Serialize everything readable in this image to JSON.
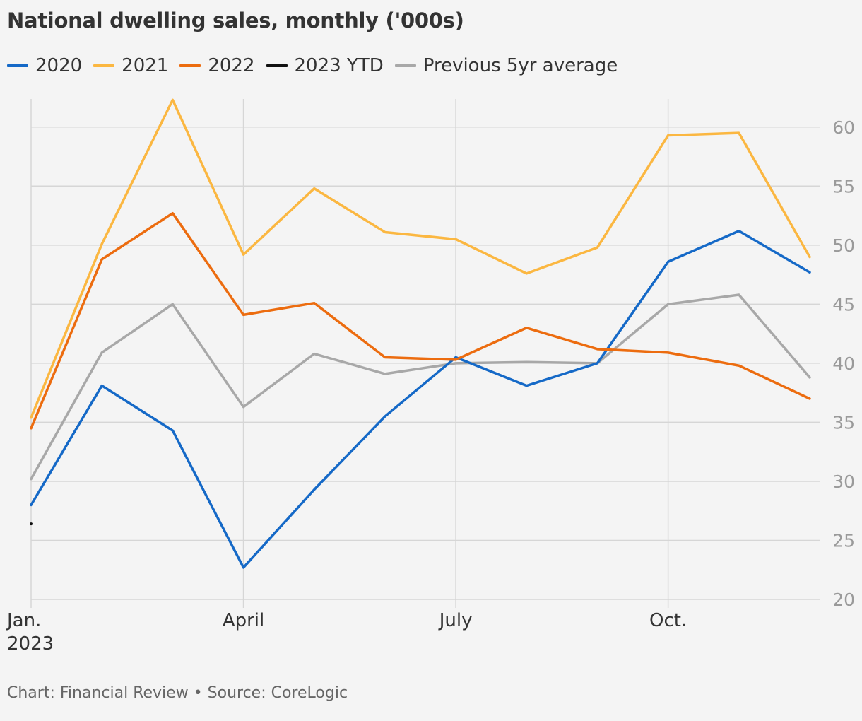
{
  "title": "National dwelling sales, monthly ('000s)",
  "footer": "Chart: Financial Review • Source: CoreLogic",
  "chart_data": {
    "type": "line",
    "x": [
      1,
      2,
      3,
      4,
      5,
      6,
      7,
      8,
      9,
      10,
      11,
      12
    ],
    "x_ticks": [
      {
        "x": 1,
        "label": "Jan.",
        "sublabel": "2023"
      },
      {
        "x": 4,
        "label": "April",
        "sublabel": ""
      },
      {
        "x": 7,
        "label": "July",
        "sublabel": ""
      },
      {
        "x": 10,
        "label": "Oct.",
        "sublabel": ""
      }
    ],
    "y_ticks": [
      20,
      25,
      30,
      35,
      40,
      45,
      50,
      55,
      60
    ],
    "ylim": [
      20,
      62.5
    ],
    "xlim": [
      1,
      12
    ],
    "y_axis_side": "right",
    "grid": true,
    "legend_position": "top-left",
    "series": [
      {
        "name": "2020",
        "color": "#1569c7",
        "values": [
          28.0,
          38.1,
          34.3,
          22.7,
          29.3,
          35.5,
          40.5,
          38.1,
          40.0,
          48.6,
          51.2,
          47.7
        ]
      },
      {
        "name": "2021",
        "color": "#fbb741",
        "values": [
          35.4,
          50.1,
          62.3,
          49.2,
          54.8,
          51.1,
          50.5,
          47.6,
          49.8,
          59.3,
          59.5,
          49.0
        ]
      },
      {
        "name": "2022",
        "color": "#ec6c0f",
        "values": [
          34.5,
          48.8,
          52.7,
          44.1,
          45.1,
          40.5,
          40.3,
          43.0,
          41.2,
          40.9,
          39.8,
          37.0
        ]
      },
      {
        "name": "2023 YTD",
        "color": "#111111",
        "values": [
          26.4,
          null,
          null,
          null,
          null,
          null,
          null,
          null,
          null,
          null,
          null,
          null
        ]
      },
      {
        "name": "Previous 5yr average",
        "color": "#a8a8a8",
        "values": [
          30.2,
          40.9,
          45.0,
          36.3,
          40.8,
          39.1,
          40.0,
          40.1,
          40.0,
          45.0,
          45.8,
          38.8
        ]
      }
    ]
  }
}
